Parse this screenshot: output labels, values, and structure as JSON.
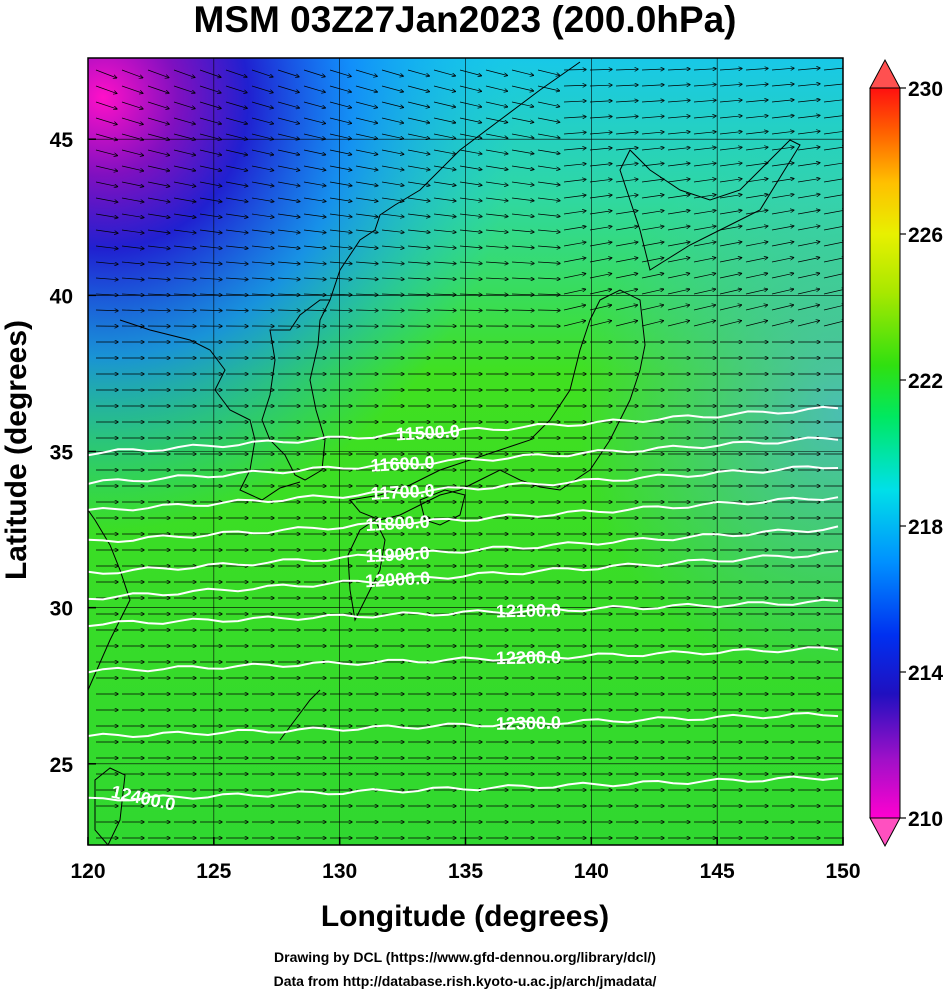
{
  "chart_data": {
    "type": "heatmap",
    "title": "MSM 03Z27Jan2023 (200.0hPa)",
    "xlabel": "Longitude (degrees)",
    "ylabel": "Latitude  (degrees)",
    "xlim": [
      120,
      150
    ],
    "ylim": [
      22.4,
      47.6
    ],
    "x_ticks": [
      "120",
      "125",
      "130",
      "135",
      "140",
      "145",
      "150"
    ],
    "y_ticks": [
      "25",
      "30",
      "35",
      "40",
      "45"
    ],
    "colorbar": {
      "min": 210,
      "max": 230,
      "ticks": [
        "210",
        "214",
        "218",
        "222",
        "226",
        "230"
      ],
      "colors": [
        "#ff00d0",
        "#9a10c8",
        "#2010c0",
        "#0040ff",
        "#00a0ff",
        "#00e8e8",
        "#00f080",
        "#20e020",
        "#80e000",
        "#d8f000",
        "#ffd000",
        "#ff8000",
        "#ff2000"
      ]
    },
    "contours": [
      {
        "label": "11500.0",
        "value": 11500,
        "at_lon": 133.5,
        "at_lat": 35.6
      },
      {
        "label": "11600.0",
        "value": 11600,
        "at_lon": 132.5,
        "at_lat": 34.6
      },
      {
        "label": "11700.0",
        "value": 11700,
        "at_lon": 132.5,
        "at_lat": 33.7
      },
      {
        "label": "11800.0",
        "value": 11800,
        "at_lon": 132.3,
        "at_lat": 32.7
      },
      {
        "label": "11900.0",
        "value": 11900,
        "at_lon": 132.3,
        "at_lat": 31.7
      },
      {
        "label": "12000.0",
        "value": 12000,
        "at_lon": 132.3,
        "at_lat": 30.9
      },
      {
        "label": "12100.0",
        "value": 12100,
        "at_lon": 137.5,
        "at_lat": 29.9
      },
      {
        "label": "12200.0",
        "value": 12200,
        "at_lon": 137.5,
        "at_lat": 28.4
      },
      {
        "label": "12300.0",
        "value": 12300,
        "at_lon": 137.5,
        "at_lat": 26.3
      },
      {
        "label": "12400.0",
        "value": 12400,
        "at_lon": 122.2,
        "at_lat": 23.9
      }
    ]
  },
  "credits": {
    "line1": "Drawing by DCL (https://www.gfd-dennou.org/library/dcl/)",
    "line2": "Data from http://database.rish.kyoto-u.ac.jp/arch/jmadata/"
  }
}
